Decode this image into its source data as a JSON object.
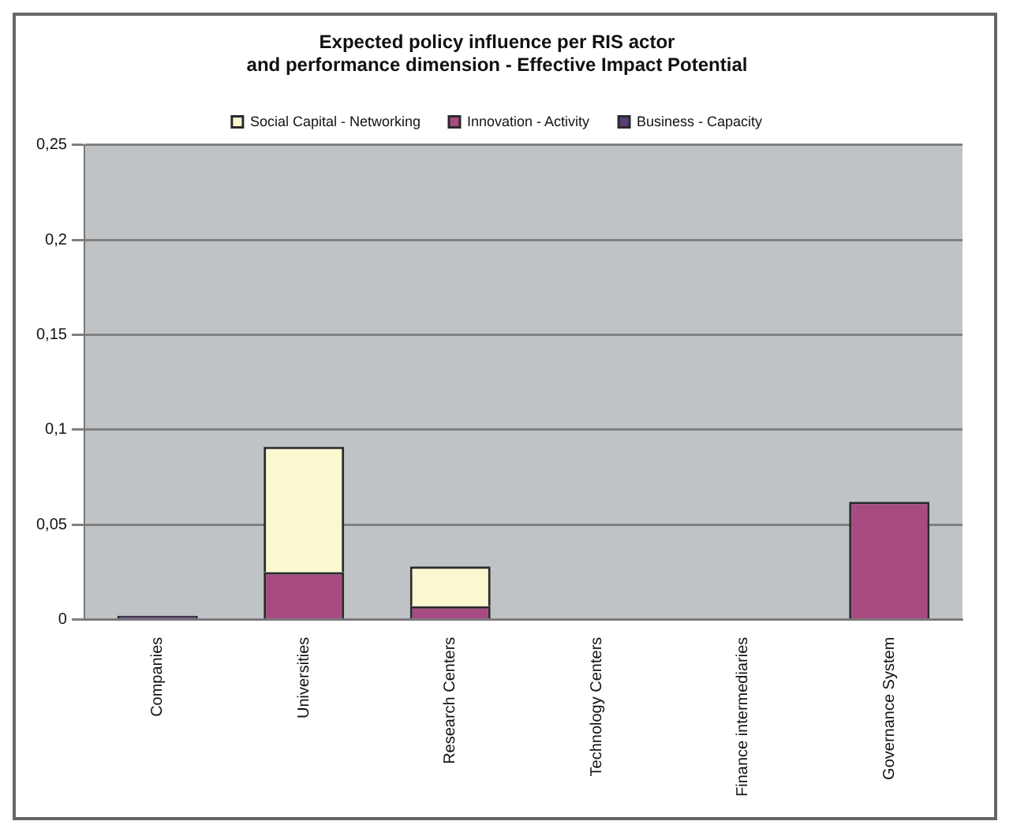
{
  "chart_data": {
    "type": "bar",
    "title": [
      "Expected policy influence per RIS actor",
      "and performance dimension - Effective Impact Potential"
    ],
    "categories": [
      "Companies",
      "Universities",
      "Research Centers",
      "Technology Centers",
      "Finance intermediaries",
      "Governance System"
    ],
    "stacked": true,
    "series": [
      {
        "name": "Business - Capacity",
        "color": "#5c3f78",
        "values": [
          0.002,
          0,
          0,
          0,
          0,
          0
        ]
      },
      {
        "name": "Innovation - Activity",
        "color": "#a84b82",
        "values": [
          0,
          0.025,
          0.007,
          0,
          0,
          0.062
        ]
      },
      {
        "name": "Social Capital - Networking",
        "color": "#fbf7cf",
        "values": [
          0,
          0.066,
          0.021,
          0,
          0,
          0
        ]
      }
    ],
    "ylim": [
      0,
      0.25
    ],
    "yticks": [
      {
        "value": 0,
        "label": "0"
      },
      {
        "value": 0.05,
        "label": "0,05"
      },
      {
        "value": 0.1,
        "label": "0,1"
      },
      {
        "value": 0.15,
        "label": "0,15"
      },
      {
        "value": 0.2,
        "label": "0,2"
      },
      {
        "value": 0.25,
        "label": "0,25"
      }
    ],
    "grid": "y",
    "legend": "top"
  }
}
